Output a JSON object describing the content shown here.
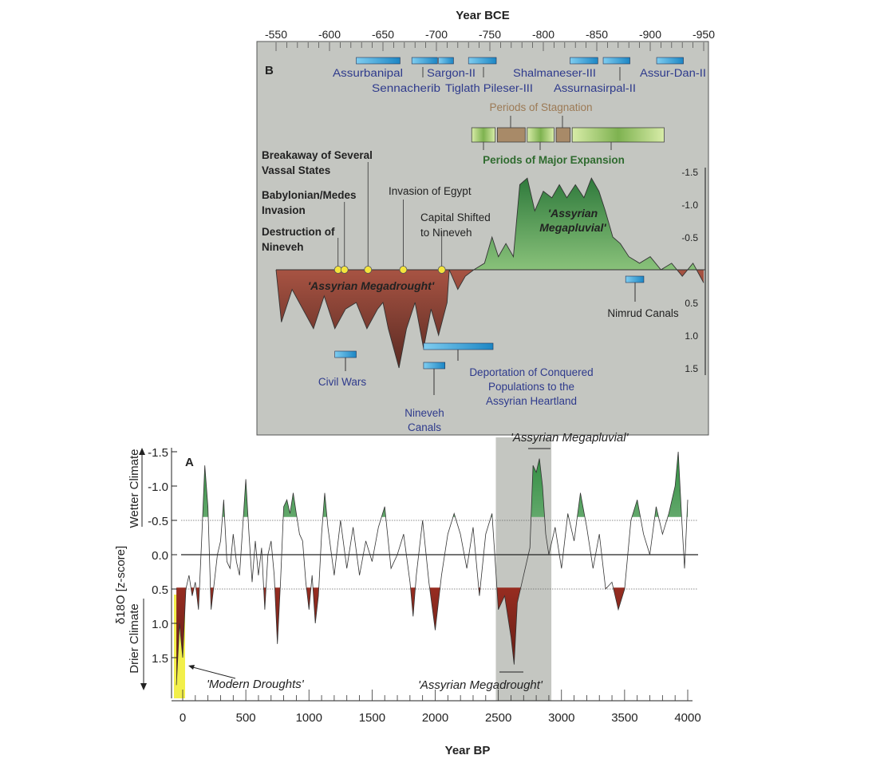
{
  "chart_data": [
    {
      "panel": "B",
      "type": "area",
      "title": "B",
      "xlabel": "Year BCE",
      "x_ticks": [
        "-550",
        "-600",
        "-650",
        "-700",
        "-750",
        "-800",
        "-850",
        "-900",
        "-950"
      ],
      "y_ticks": [
        "-1.5",
        "-1.0",
        "-0.5",
        "0.5",
        "1.0",
        "1.5"
      ],
      "xlim": [
        -550,
        -950
      ],
      "ylim": [
        -1.5,
        1.5
      ],
      "x": [
        -550,
        -555,
        -565,
        -575,
        -585,
        -595,
        -605,
        -615,
        -625,
        -635,
        -645,
        -650,
        -655,
        -665,
        -672,
        -680,
        -688,
        -695,
        -702,
        -710,
        -712,
        -720,
        -727,
        -735,
        -745,
        -752,
        -758,
        -765,
        -772,
        -778,
        -785,
        -792,
        -800,
        -808,
        -815,
        -822,
        -830,
        -838,
        -845,
        -852,
        -858,
        -865,
        -872,
        -880,
        -890,
        -900,
        -910,
        -920,
        -930,
        -940,
        -950
      ],
      "y": [
        0.0,
        0.8,
        0.3,
        0.6,
        0.9,
        0.4,
        0.9,
        0.6,
        0.5,
        0.9,
        0.6,
        0.5,
        0.9,
        1.5,
        0.9,
        0.5,
        1.2,
        0.6,
        1.0,
        0.5,
        0.0,
        0.3,
        0.1,
        0.0,
        -0.1,
        -0.5,
        -0.2,
        -0.4,
        -0.2,
        -1.3,
        -1.4,
        -0.9,
        -1.2,
        -1.1,
        -1.3,
        -1.1,
        -1.3,
        -1.1,
        -1.4,
        -1.2,
        -0.9,
        -0.5,
        -0.4,
        -0.2,
        -0.1,
        -0.2,
        0.0,
        -0.1,
        0.1,
        -0.1,
        0.2
      ],
      "area_labels": [
        "'Assyrian Megadrought'",
        "'Assyrian Megapluvial'"
      ],
      "rulers": [
        {
          "name": "Assurbanipal",
          "start": -625,
          "end": -666
        },
        {
          "name": "Sennacherib",
          "start": -677,
          "end": -701
        },
        {
          "name": "Sargon-II",
          "start": -702,
          "end": -716
        },
        {
          "name": "Tiglath Pileser-III",
          "start": -730,
          "end": -756
        },
        {
          "name": "Shalmaneser-III",
          "start": -825,
          "end": -851
        },
        {
          "name": "Assurnasirpal-II",
          "start": -856,
          "end": -881
        },
        {
          "name": "Assur-Dan-II",
          "start": -906,
          "end": -931
        }
      ],
      "periods_title_stagnation": "Periods of Stagnation",
      "periods_title_expansion": "Periods of Major Expansion",
      "periods": [
        {
          "type": "expansion",
          "start": -733,
          "end": -755
        },
        {
          "type": "stagnation",
          "start": -757,
          "end": -783
        },
        {
          "type": "expansion",
          "start": -785,
          "end": -810
        },
        {
          "type": "stagnation",
          "start": -812,
          "end": -825
        },
        {
          "type": "expansion",
          "start": -827,
          "end": -913
        }
      ],
      "events": [
        {
          "label": "Destruction of Nineveh",
          "year": -608
        },
        {
          "label": "Babylonian/Medes Invasion",
          "year": -614
        },
        {
          "label": "Breakaway of Several Vassal States",
          "year": -636
        },
        {
          "label": "Invasion of Egypt",
          "year": -669
        },
        {
          "label": "Capital Shifted to Nineveh",
          "year": -705
        }
      ],
      "other_bars": [
        {
          "label": "Civil Wars",
          "start": -605,
          "end": -625
        },
        {
          "label": "Deportation of Conquered Populations to the Assyrian Heartland",
          "start": -688,
          "end": -753
        },
        {
          "label": "Nineveh Canals",
          "start": -688,
          "end": -708
        },
        {
          "label": "Nimrud Canals",
          "start": -877,
          "end": -894
        }
      ],
      "colors": {
        "panel_bg": "#c4c6c1",
        "ruler_bar": "#2a9fd6",
        "drought": "#a8473a",
        "pluvial": "#3f8f45",
        "stagnation": "#a88a68",
        "expansion": "#a6cc6c",
        "ruler_text": "#2e3a8c",
        "stagnation_text": "#9c7a55",
        "expansion_text": "#2f6b2f"
      }
    },
    {
      "panel": "A",
      "type": "line",
      "title": "A",
      "xlabel": "Year BP",
      "ylabel": "δ18O [z-score]",
      "ylabel_wetter": "Wetter Climate",
      "ylabel_drier": "Drier Climate",
      "x_ticks": [
        "0",
        "500",
        "1000",
        "1500",
        "2000",
        "2500",
        "3000",
        "3500",
        "4000"
      ],
      "y_ticks": [
        "-1.5",
        "-1.0",
        "-0.5",
        "0.0",
        "0.5",
        "1.0",
        "1.5"
      ],
      "xlim": [
        -50,
        4000
      ],
      "ylim": [
        -1.5,
        2.1
      ],
      "reference_lines": [
        -0.5,
        0.0,
        0.5
      ],
      "shaded_region": [
        2480,
        2920
      ],
      "highlight_region": [
        -50,
        0
      ],
      "annotations": [
        "'Modern Droughts'",
        "'Assyrian Megapluvial'",
        "'Assyrian Megadrought'"
      ],
      "x": [
        -50,
        -25,
        0,
        25,
        50,
        75,
        100,
        125,
        150,
        175,
        200,
        225,
        250,
        275,
        300,
        325,
        350,
        375,
        400,
        425,
        450,
        475,
        500,
        525,
        550,
        575,
        600,
        625,
        650,
        675,
        700,
        725,
        750,
        775,
        800,
        825,
        850,
        875,
        900,
        925,
        950,
        975,
        1000,
        1025,
        1050,
        1075,
        1100,
        1125,
        1150,
        1200,
        1250,
        1300,
        1350,
        1400,
        1450,
        1500,
        1550,
        1600,
        1650,
        1700,
        1750,
        1800,
        1825,
        1850,
        1900,
        1950,
        2000,
        2050,
        2100,
        2150,
        2200,
        2250,
        2300,
        2350,
        2400,
        2450,
        2475,
        2500,
        2550,
        2600,
        2625,
        2650,
        2700,
        2750,
        2775,
        2800,
        2825,
        2850,
        2875,
        2900,
        2950,
        3000,
        3050,
        3100,
        3150,
        3200,
        3250,
        3300,
        3350,
        3400,
        3450,
        3500,
        3550,
        3600,
        3650,
        3700,
        3750,
        3800,
        3850,
        3900,
        3925,
        3950,
        3975,
        4000
      ],
      "y": [
        1.9,
        1.0,
        1.5,
        0.5,
        0.3,
        0.6,
        0.4,
        0.8,
        -0.2,
        -1.3,
        -0.7,
        0.8,
        0.4,
        0.0,
        -0.2,
        -0.8,
        0.1,
        0.2,
        -0.3,
        0.1,
        0.3,
        -0.4,
        -1.1,
        -0.3,
        0.4,
        -0.2,
        0.3,
        -0.1,
        0.8,
        0.0,
        -0.2,
        0.3,
        1.3,
        0.4,
        -0.7,
        -0.8,
        -0.6,
        -0.9,
        -0.6,
        -0.3,
        -0.2,
        0.4,
        0.8,
        0.3,
        1.0,
        0.6,
        -0.3,
        -0.9,
        -0.4,
        0.3,
        -0.5,
        0.2,
        -0.4,
        0.3,
        -0.2,
        0.1,
        -0.4,
        -0.7,
        0.2,
        0.0,
        -0.3,
        0.4,
        0.9,
        0.3,
        -0.5,
        0.4,
        1.1,
        0.3,
        -0.3,
        -0.6,
        -0.3,
        0.2,
        -0.4,
        0.6,
        -0.3,
        -0.6,
        0.1,
        0.8,
        0.6,
        1.2,
        1.6,
        0.7,
        0.3,
        -0.1,
        -1.3,
        -1.2,
        -1.4,
        -1.0,
        -0.3,
        0.0,
        -0.4,
        0.2,
        -0.6,
        -0.2,
        -0.9,
        -0.4,
        0.2,
        -0.3,
        0.5,
        0.4,
        0.8,
        0.5,
        -0.5,
        -0.8,
        -0.3,
        0.0,
        -0.7,
        -0.3,
        -0.6,
        -1.0,
        -1.5,
        -0.6,
        0.2,
        -0.8
      ]
    }
  ]
}
